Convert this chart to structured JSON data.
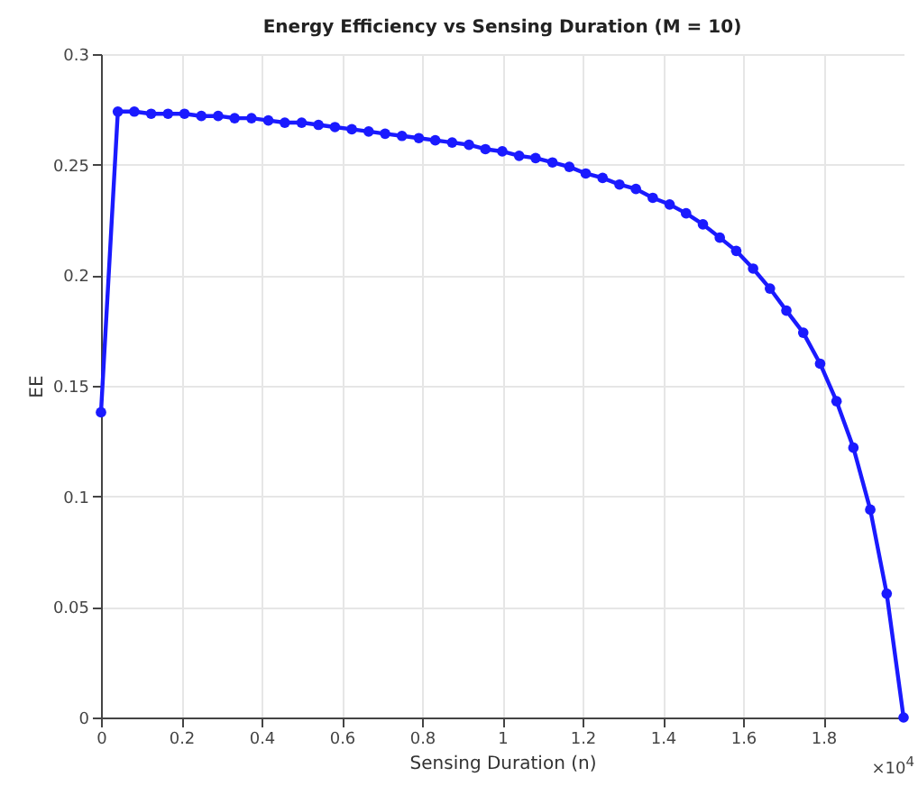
{
  "chart_data": {
    "type": "line",
    "title": "Energy Efficiency vs Sensing Duration (M = 10)",
    "xlabel": "Sensing Duration (n)",
    "ylabel": "EE",
    "annotations": [
      "×10$^{4}$"
    ],
    "x": [
      0,
      0.042,
      0.083,
      0.125,
      0.167,
      0.208,
      0.25,
      0.292,
      0.333,
      0.375,
      0.417,
      0.458,
      0.5,
      0.542,
      0.583,
      0.625,
      0.667,
      0.708,
      0.75,
      0.792,
      0.833,
      0.875,
      0.917,
      0.958,
      1.0,
      1.042,
      1.083,
      1.125,
      1.167,
      1.208,
      1.25,
      1.292,
      1.333,
      1.375,
      1.417,
      1.458,
      1.5,
      1.542,
      1.583,
      1.625,
      1.667,
      1.708,
      1.75,
      1.792,
      1.833,
      1.875,
      1.917,
      1.958,
      2.0
    ],
    "series": [
      {
        "color": "#1a1aff",
        "values": [
          0.138,
          0.274,
          0.274,
          0.273,
          0.273,
          0.273,
          0.272,
          0.272,
          0.271,
          0.271,
          0.27,
          0.269,
          0.269,
          0.268,
          0.267,
          0.266,
          0.265,
          0.264,
          0.263,
          0.262,
          0.261,
          0.26,
          0.259,
          0.257,
          0.256,
          0.254,
          0.253,
          0.251,
          0.249,
          0.246,
          0.244,
          0.241,
          0.239,
          0.235,
          0.232,
          0.228,
          0.223,
          0.217,
          0.211,
          0.203,
          0.194,
          0.184,
          0.174,
          0.16,
          0.143,
          0.122,
          0.094,
          0.056,
          0
        ]
      }
    ],
    "xlim": [
      0,
      2
    ],
    "xticks": [
      0,
      0.2,
      0.4,
      0.6,
      0.8,
      1,
      1.2,
      1.4,
      1.6,
      1.8
    ],
    "ylim": [
      0,
      0.3
    ],
    "yticks": [
      0,
      0.05,
      0.1,
      0.15,
      0.2,
      0.25,
      0.3
    ],
    "grid": true,
    "marker": "circle",
    "line_style": "solid"
  }
}
